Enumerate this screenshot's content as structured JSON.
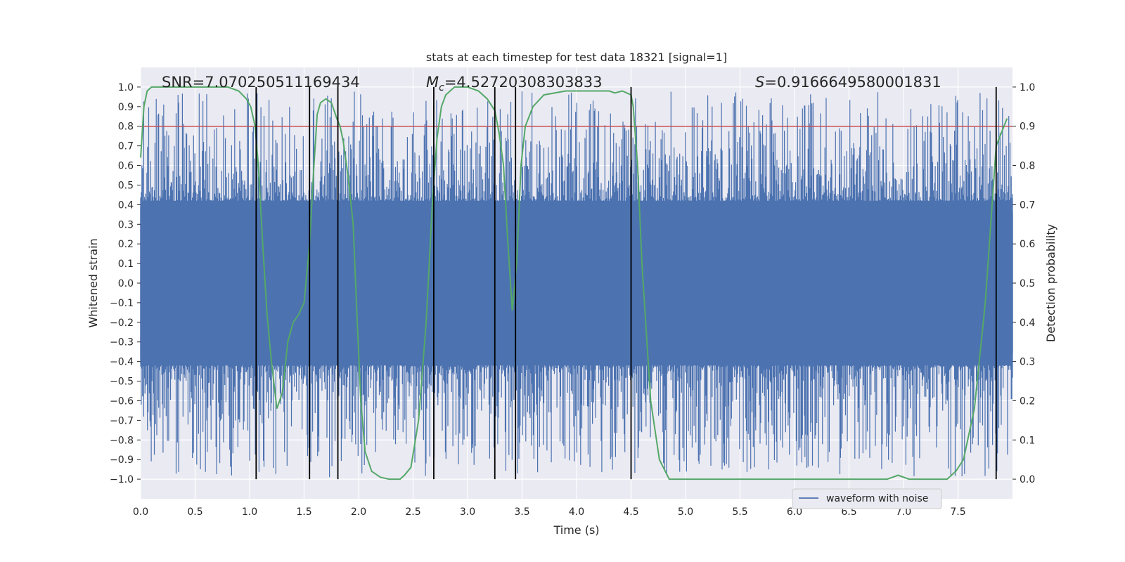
{
  "chart_data": {
    "type": "line",
    "title": "stats at each timestep for test data 18321 [signal=1]",
    "xlabel": "Time (s)",
    "ylabel": "Whitened strain",
    "y2label": "Detection probability",
    "xlim": [
      0.0,
      8.0
    ],
    "ylim": [
      -1.1,
      1.1
    ],
    "y2lim": [
      -0.05,
      1.05
    ],
    "xticks": [
      "0.0",
      "0.5",
      "1.0",
      "1.5",
      "2.0",
      "2.5",
      "3.0",
      "3.5",
      "4.0",
      "4.5",
      "5.0",
      "5.5",
      "6.0",
      "6.5",
      "7.0",
      "7.5"
    ],
    "xtick_values": [
      0.0,
      0.5,
      1.0,
      1.5,
      2.0,
      2.5,
      3.0,
      3.5,
      4.0,
      4.5,
      5.0,
      5.5,
      6.0,
      6.5,
      7.0,
      7.5
    ],
    "yticks": [
      "1.0",
      "0.9",
      "0.8",
      "0.7",
      "0.6",
      "0.5",
      "0.4",
      "0.3",
      "0.2",
      "0.1",
      "0.0",
      "−0.1",
      "−0.2",
      "−0.3",
      "−0.4",
      "−0.5",
      "−0.6",
      "−0.7",
      "−0.8",
      "−0.9",
      "−1.0"
    ],
    "ytick_values": [
      1.0,
      0.9,
      0.8,
      0.7,
      0.6,
      0.5,
      0.4,
      0.3,
      0.2,
      0.1,
      0.0,
      -0.1,
      -0.2,
      -0.3,
      -0.4,
      -0.5,
      -0.6,
      -0.7,
      -0.8,
      -0.9,
      -1.0
    ],
    "y2ticks": [
      "1.0",
      "0.9",
      "0.8",
      "0.7",
      "0.6",
      "0.5",
      "0.4",
      "0.3",
      "0.2",
      "0.1",
      "0.0"
    ],
    "y2tick_values": [
      1.0,
      0.9,
      0.8,
      0.7,
      0.6,
      0.5,
      0.4,
      0.3,
      0.2,
      0.1,
      0.0
    ],
    "threshold": 0.9,
    "vertical_lines": [
      1.06,
      1.55,
      1.81,
      2.69,
      3.25,
      3.44,
      4.5,
      7.85
    ],
    "vertical_lines_range": [
      -1.0,
      1.0
    ],
    "annotations": {
      "snr": "SNR=7.070250511169434",
      "mc_prefix": "M",
      "mc_sub": "c",
      "mc_value": "=4.52720308303833",
      "s_prefix": "S",
      "s_value": "=0.9166649580001831"
    },
    "legend": [
      {
        "label": "waveform with noise",
        "color": "#4c72b0"
      }
    ],
    "legend_location": "lower-right",
    "colors": {
      "background": "#eaeaf2",
      "waveform": "#4c72b0",
      "probability": "#55a868",
      "threshold": "#c44e52",
      "vlines": "#000000",
      "grid": "#ffffff"
    },
    "waveform": {
      "name": "waveform with noise",
      "x_range": [
        0.0,
        8.0
      ],
      "core_amplitude": 0.42,
      "peak_amplitude_max": 0.98,
      "peak_amplitude_min": -0.99
    },
    "series": [
      {
        "name": "detection probability",
        "x": [
          0.0,
          0.03,
          0.06,
          0.1,
          0.2,
          0.35,
          0.5,
          0.65,
          0.8,
          0.9,
          0.97,
          1.01,
          1.05,
          1.08,
          1.12,
          1.16,
          1.2,
          1.25,
          1.3,
          1.35,
          1.4,
          1.45,
          1.5,
          1.55,
          1.59,
          1.62,
          1.65,
          1.7,
          1.75,
          1.8,
          1.83,
          1.86,
          1.9,
          1.95,
          1.98,
          2.02,
          2.06,
          2.12,
          2.2,
          2.28,
          2.33,
          2.38,
          2.42,
          2.48,
          2.55,
          2.62,
          2.68,
          2.72,
          2.76,
          2.8,
          2.88,
          3.0,
          3.1,
          3.18,
          3.25,
          3.29,
          3.33,
          3.37,
          3.41,
          3.45,
          3.49,
          3.53,
          3.6,
          3.7,
          3.9,
          4.1,
          4.2,
          4.3,
          4.35,
          4.42,
          4.5,
          4.52,
          4.56,
          4.6,
          4.68,
          4.76,
          4.85,
          5.0,
          5.2,
          5.5,
          6.0,
          6.5,
          6.7,
          6.85,
          6.95,
          7.05,
          7.2,
          7.4,
          7.48,
          7.55,
          7.65,
          7.75,
          7.85,
          7.95
        ],
        "values": [
          0.82,
          0.95,
          0.99,
          1.0,
          1.0,
          1.0,
          1.0,
          1.0,
          1.0,
          0.99,
          0.97,
          0.95,
          0.9,
          0.8,
          0.6,
          0.42,
          0.3,
          0.18,
          0.22,
          0.35,
          0.4,
          0.42,
          0.45,
          0.6,
          0.8,
          0.93,
          0.96,
          0.97,
          0.96,
          0.92,
          0.9,
          0.86,
          0.78,
          0.65,
          0.45,
          0.2,
          0.07,
          0.02,
          0.005,
          0.0,
          0.0,
          0.0,
          0.01,
          0.03,
          0.15,
          0.4,
          0.72,
          0.87,
          0.95,
          0.98,
          1.0,
          1.0,
          0.99,
          0.97,
          0.94,
          0.88,
          0.8,
          0.6,
          0.43,
          0.55,
          0.8,
          0.9,
          0.95,
          0.98,
          0.99,
          0.99,
          0.99,
          0.99,
          0.985,
          0.99,
          0.98,
          0.95,
          0.8,
          0.55,
          0.2,
          0.05,
          0.0,
          0.0,
          0.0,
          0.0,
          0.0,
          0.0,
          0.0,
          0.0,
          0.01,
          0.0,
          0.0,
          0.0,
          0.02,
          0.05,
          0.18,
          0.45,
          0.85,
          0.92
        ]
      }
    ]
  }
}
